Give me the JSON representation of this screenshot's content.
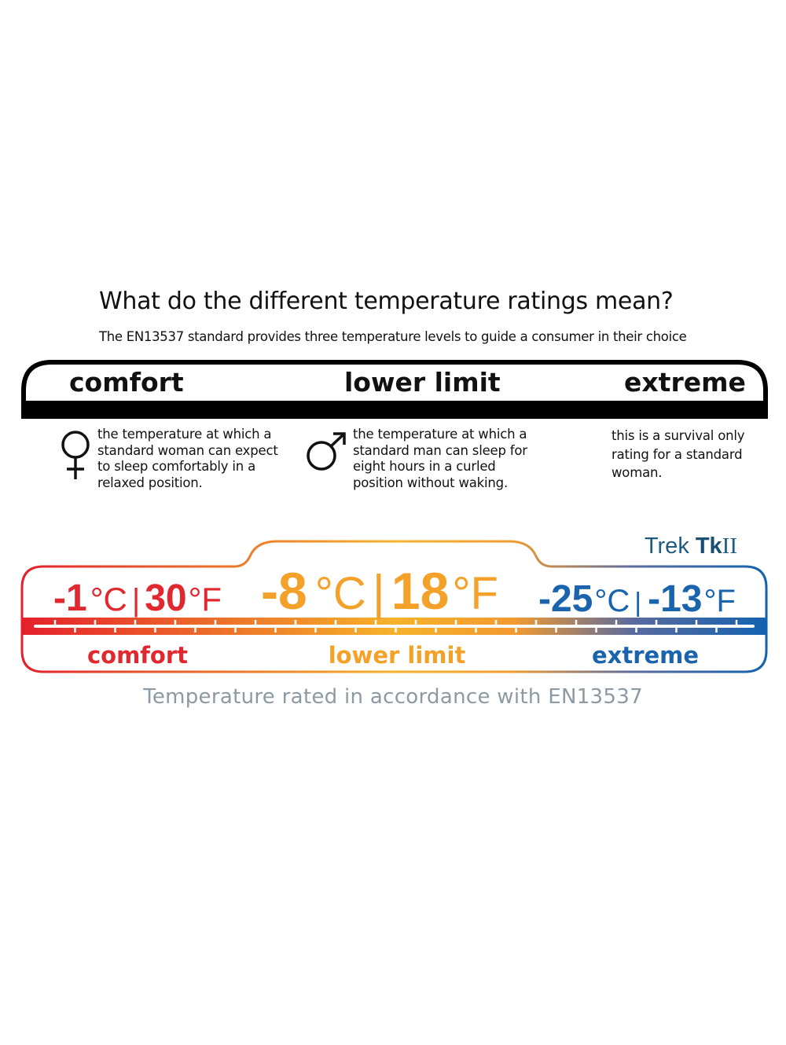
{
  "title": "What do the different temperature ratings mean?",
  "subtitle": "The EN13537 standard provides three temperature levels to guide a consumer in their choice",
  "levels": [
    {
      "label": "comfort",
      "icon": "female-symbol-icon",
      "description": [
        "the temperature at which a",
        "standard woman can expect",
        "to sleep comfortably in a",
        "relaxed position."
      ]
    },
    {
      "label": "lower limit",
      "icon": "male-symbol-icon",
      "description": [
        "the temperature at which a",
        "standard man can sleep for",
        "eight hours in a curled",
        "position without waking."
      ]
    },
    {
      "label": "extreme",
      "description": [
        "this is a survival only",
        "rating for a standard",
        "woman."
      ]
    }
  ],
  "product": {
    "prefix": "Trek",
    "model_bold": "Tk",
    "model_suffix": "II"
  },
  "ratings": [
    {
      "label": "comfort",
      "celsius": "-1",
      "fahrenheit": "30",
      "color": "#e0282e"
    },
    {
      "label": "lower limit",
      "celsius": "-8",
      "fahrenheit": "18",
      "color": "#f4a12a"
    },
    {
      "label": "extreme",
      "celsius": "-25",
      "fahrenheit": "-13",
      "color": "#1a63ad"
    }
  ],
  "units": {
    "c": "°C",
    "f": "°F"
  },
  "caption": "Temperature rated in accordance with EN13537"
}
